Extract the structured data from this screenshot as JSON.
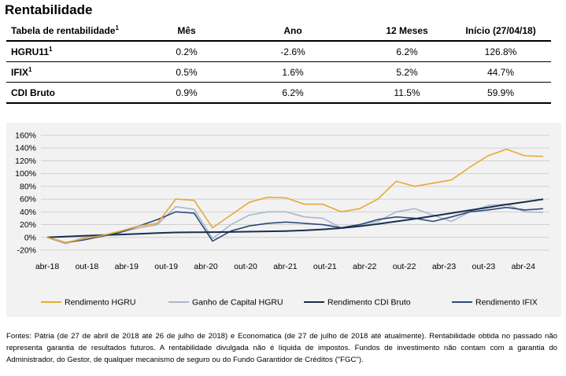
{
  "title": "Rentabilidade",
  "table": {
    "headers": [
      {
        "text": "Tabela de rentabilidade",
        "sup": "1"
      },
      {
        "text": "Mês",
        "sup": ""
      },
      {
        "text": "Ano",
        "sup": ""
      },
      {
        "text": "12 Meses",
        "sup": ""
      },
      {
        "text": "Início (27/04/18)",
        "sup": ""
      }
    ],
    "rows": [
      {
        "name": "HGRU11",
        "sup": "1",
        "values": [
          "0.2%",
          "-2.6%",
          "6.2%",
          "126.8%"
        ]
      },
      {
        "name": "IFIX",
        "sup": "1",
        "values": [
          "0.5%",
          "1.6%",
          "5.2%",
          "44.7%"
        ]
      },
      {
        "name": "CDI Bruto",
        "sup": "",
        "values": [
          "0.9%",
          "6.2%",
          "11.5%",
          "59.9%"
        ]
      }
    ]
  },
  "chart_data": {
    "type": "line",
    "title": "",
    "xlabel": "",
    "ylabel": "",
    "ylim": [
      -20,
      160
    ],
    "yticks": [
      "-20%",
      "0%",
      "20%",
      "40%",
      "60%",
      "80%",
      "100%",
      "120%",
      "140%",
      "160%"
    ],
    "x_ticks": [
      "abr-18",
      "out-18",
      "abr-19",
      "out-19",
      "abr-20",
      "out-20",
      "abr-21",
      "out-21",
      "abr-22",
      "out-22",
      "abr-23",
      "out-23",
      "abr-24"
    ],
    "x": [
      "abr-18",
      "jul-18",
      "out-18",
      "jan-19",
      "abr-19",
      "jul-19",
      "out-19",
      "jan-20",
      "fev-20",
      "mar-20",
      "abr-20",
      "jul-20",
      "out-20",
      "jan-21",
      "abr-21",
      "jul-21",
      "out-21",
      "jan-22",
      "abr-22",
      "jul-22",
      "out-22",
      "jan-23",
      "abr-23",
      "jul-23",
      "out-23",
      "jan-24",
      "abr-24",
      "jul-24"
    ],
    "legend_position": "bottom",
    "grid": "horizontal",
    "series": [
      {
        "name": "Rendimento HGRU",
        "color": "#e8a838",
        "values": [
          0,
          -8,
          -2,
          3,
          10,
          18,
          22,
          60,
          58,
          15,
          35,
          55,
          63,
          62,
          52,
          52,
          40,
          45,
          60,
          88,
          80,
          85,
          90,
          110,
          128,
          138,
          128,
          127
        ]
      },
      {
        "name": "Ganho de Capital HGRU",
        "color": "#a9b7cc",
        "values": [
          0,
          -10,
          0,
          2,
          8,
          15,
          20,
          48,
          44,
          -2,
          20,
          35,
          40,
          40,
          32,
          30,
          15,
          20,
          25,
          40,
          45,
          35,
          25,
          40,
          50,
          52,
          40,
          39
        ]
      },
      {
        "name": "Rendimento CDI Bruto",
        "color": "#1a2e4f",
        "values": [
          0,
          1.2,
          2.5,
          3.5,
          4.5,
          5.7,
          6.8,
          7.8,
          8.0,
          8.2,
          8.5,
          9.0,
          9.5,
          10.0,
          11.0,
          12.5,
          14.5,
          17.5,
          21.0,
          25.0,
          29.0,
          33.5,
          38.0,
          42.5,
          47.0,
          51.5,
          55.5,
          59.9
        ]
      },
      {
        "name": "Rendimento IFIX",
        "color": "#2b4a78",
        "values": [
          0,
          -8,
          -4,
          2,
          8,
          18,
          28,
          40,
          38,
          -6,
          10,
          18,
          22,
          24,
          22,
          20,
          15,
          20,
          28,
          32,
          30,
          25,
          32,
          40,
          43,
          47,
          43,
          45
        ]
      }
    ]
  },
  "footer": "Fontes: Pátria (de 27 de abril de 2018 até 26 de julho de 2018) e Economatica (de 27 de julho de 2018 até atualmente). Rentabilidade obtida no passado não representa garantia de resultados futuros. A rentabilidade divulgada não é líquida de impostos. Fundos de investimento não contam com a garantia do Administrador, do Gestor, de qualquer mecanismo de seguro ou do Fundo Garantidor de Créditos (\"FGC\")."
}
